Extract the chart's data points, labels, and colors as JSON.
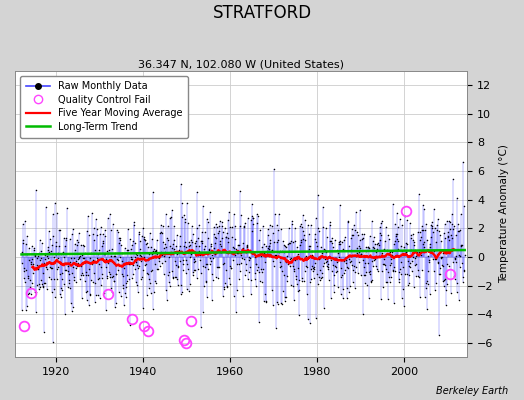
{
  "title": "STRATFORD",
  "subtitle": "36.347 N, 102.080 W (United States)",
  "ylabel": "Temperature Anomaly (°C)",
  "credit": "Berkeley Earth",
  "ylim": [
    -7,
    13
  ],
  "yticks": [
    -6,
    -4,
    -2,
    0,
    2,
    4,
    6,
    8,
    10,
    12
  ],
  "year_start": 1912,
  "year_end": 2013,
  "fig_bg_color": "#d4d4d4",
  "plot_bg_color": "#ffffff",
  "raw_line_color": "#4444ff",
  "raw_marker_color": "black",
  "qc_fail_color": "#ff44ff",
  "moving_avg_color": "red",
  "trend_color": "#00bb00",
  "seed": 17,
  "figsize": [
    5.24,
    4.0
  ],
  "dpi": 100
}
